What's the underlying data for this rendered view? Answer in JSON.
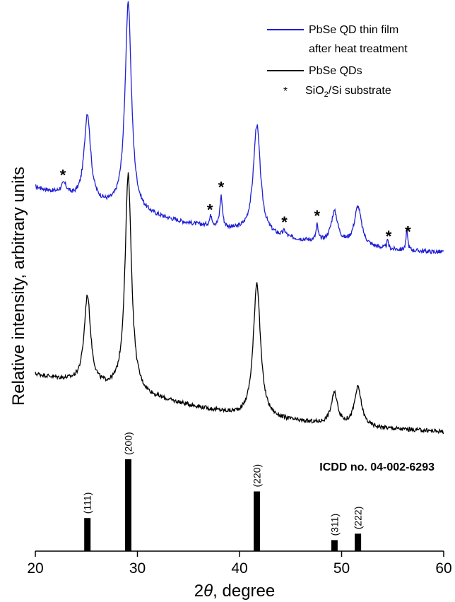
{
  "chart_data": {
    "type": "line",
    "xlabel_prefix": "2",
    "xlabel_theta": "θ",
    "xlabel_suffix": ", degree",
    "ylabel": "Relative intensity, arbitrary units",
    "xlim": [
      20,
      60
    ],
    "x_ticks": [
      20,
      30,
      40,
      50,
      60
    ],
    "legend": {
      "placement": "top-right",
      "entries": [
        {
          "line1": "PbSe QD thin film",
          "line2": "after heat treatment",
          "color": "#1f1fd6",
          "marker": "line"
        },
        {
          "line1": "PbSe QDs",
          "color": "#000000",
          "marker": "line"
        },
        {
          "prefix": "SiO",
          "sub": "2",
          "suffix": "/Si substrate",
          "marker": "*"
        }
      ]
    },
    "series": [
      {
        "name": "PbSe QD thin film after heat treatment",
        "color": "#1f1fd6",
        "baseline": [
          [
            20,
            0.7
          ],
          [
            25,
            0.67
          ],
          [
            30,
            0.65
          ],
          [
            35,
            0.63
          ],
          [
            40,
            0.615
          ],
          [
            45,
            0.6
          ],
          [
            50,
            0.59
          ],
          [
            55,
            0.58
          ],
          [
            60,
            0.575
          ]
        ],
        "peaks": [
          {
            "x": 22.8,
            "h": 0.02,
            "w": 0.35
          },
          {
            "x": 25.1,
            "h": 0.17,
            "w": 0.38
          },
          {
            "x": 29.1,
            "h": 0.4,
            "w": 0.38
          },
          {
            "x": 37.2,
            "h": 0.02,
            "w": 0.15
          },
          {
            "x": 38.2,
            "h": 0.06,
            "w": 0.15
          },
          {
            "x": 41.7,
            "h": 0.21,
            "w": 0.42
          },
          {
            "x": 44.4,
            "h": 0.01,
            "w": 0.2
          },
          {
            "x": 47.6,
            "h": 0.03,
            "w": 0.12
          },
          {
            "x": 49.3,
            "h": 0.06,
            "w": 0.4
          },
          {
            "x": 51.6,
            "h": 0.075,
            "w": 0.42
          },
          {
            "x": 54.5,
            "h": 0.015,
            "w": 0.1
          },
          {
            "x": 56.4,
            "h": 0.04,
            "w": 0.1
          }
        ]
      },
      {
        "name": "PbSe QDs",
        "color": "#000000",
        "baseline": [
          [
            20,
            0.34
          ],
          [
            25,
            0.32
          ],
          [
            30,
            0.3
          ],
          [
            35,
            0.28
          ],
          [
            40,
            0.26
          ],
          [
            45,
            0.25
          ],
          [
            50,
            0.24
          ],
          [
            55,
            0.235
          ],
          [
            60,
            0.23
          ]
        ],
        "peaks": [
          {
            "x": 25.1,
            "h": 0.17,
            "w": 0.38
          },
          {
            "x": 29.1,
            "h": 0.42,
            "w": 0.38
          },
          {
            "x": 41.7,
            "h": 0.26,
            "w": 0.42
          },
          {
            "x": 49.3,
            "h": 0.06,
            "w": 0.4
          },
          {
            "x": 51.6,
            "h": 0.075,
            "w": 0.42
          }
        ]
      }
    ],
    "substrate_markers": [
      22.7,
      37.1,
      38.2,
      44.4,
      47.6,
      54.6,
      56.5
    ],
    "reference": {
      "label": "ICDD no. 04-002-6293",
      "bars": [
        {
          "x": 25.1,
          "hkl": "(111)",
          "value": 0.36
        },
        {
          "x": 29.1,
          "hkl": "(200)",
          "value": 1.0
        },
        {
          "x": 41.7,
          "hkl": "(220)",
          "value": 0.65
        },
        {
          "x": 49.3,
          "hkl": "(311)",
          "value": 0.12
        },
        {
          "x": 51.6,
          "hkl": "(222)",
          "value": 0.19
        }
      ]
    }
  }
}
